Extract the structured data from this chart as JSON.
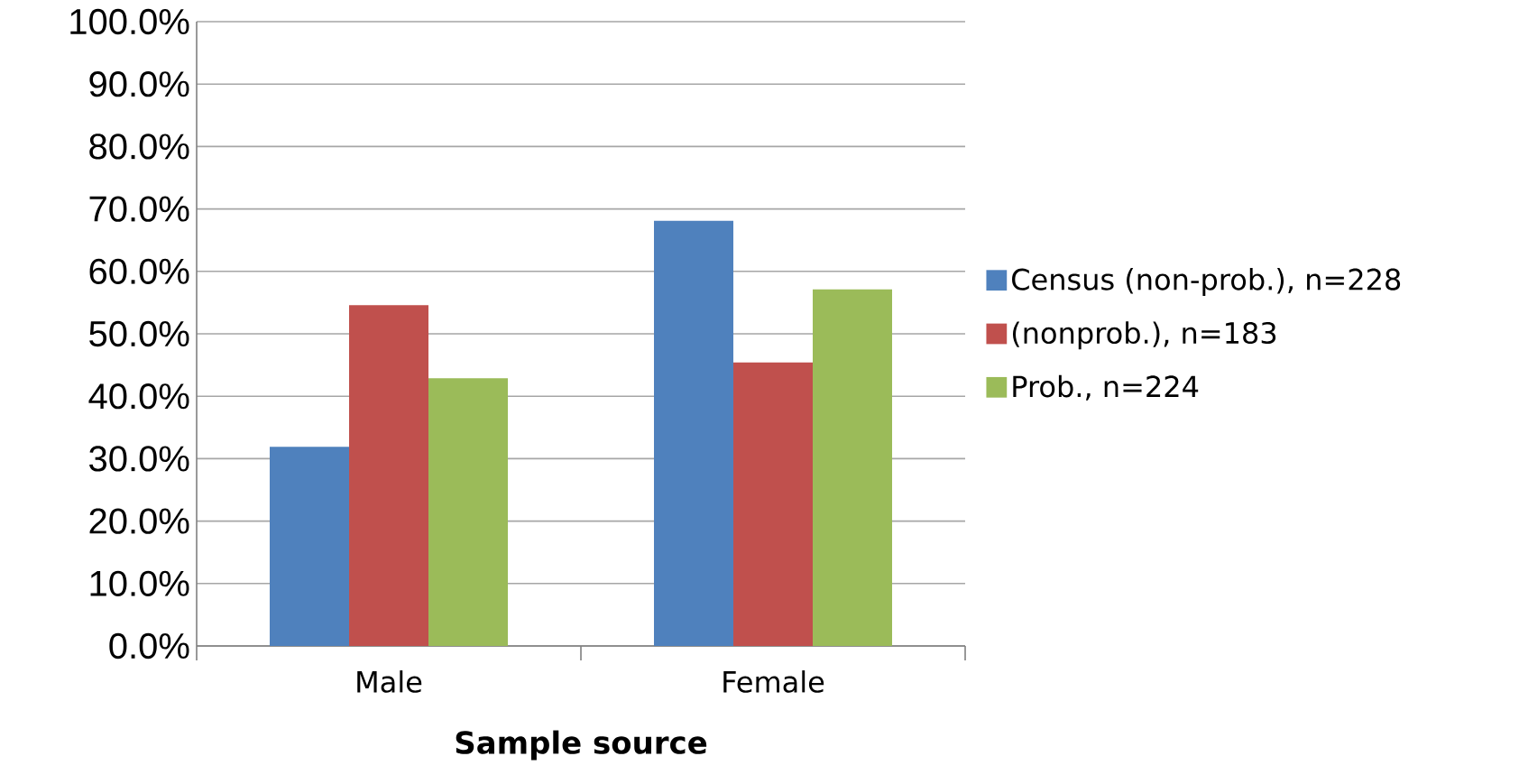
{
  "chart_data": {
    "type": "bar",
    "xlabel": "Sample source",
    "categories": [
      "Male",
      "Female"
    ],
    "series": [
      {
        "name": "Census (non-prob.), n=228",
        "color": "#4f81bd",
        "values": [
          31.9,
          68.1
        ]
      },
      {
        "name": "(nonprob.), n=183",
        "color": "#c0504d",
        "values": [
          54.6,
          45.4
        ]
      },
      {
        "name": "Prob., n=224",
        "color": "#9bbb59",
        "values": [
          42.9,
          57.1
        ]
      }
    ],
    "ylim": [
      0,
      100
    ],
    "yticks": [
      {
        "value": 0,
        "label": "0.0%"
      },
      {
        "value": 10,
        "label": "10.0%"
      },
      {
        "value": 20,
        "label": "20.0%"
      },
      {
        "value": 30,
        "label": "30.0%"
      },
      {
        "value": 40,
        "label": "40.0%"
      },
      {
        "value": 50,
        "label": "50.0%"
      },
      {
        "value": 60,
        "label": "60.0%"
      },
      {
        "value": 70,
        "label": "70.0%"
      },
      {
        "value": 80,
        "label": "80.0%"
      },
      {
        "value": 90,
        "label": "90.0%"
      },
      {
        "value": 100,
        "label": "100.0%"
      }
    ],
    "grid": "y",
    "legend": "right"
  }
}
